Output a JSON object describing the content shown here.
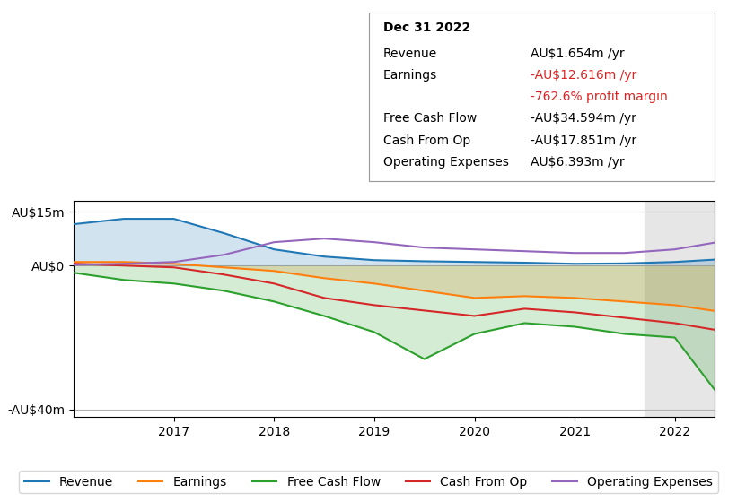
{
  "chart_data": {
    "type": "line",
    "title": "Dec 31 2022",
    "x": [
      2016.0,
      2016.5,
      2017.0,
      2017.5,
      2018.0,
      2018.5,
      2019.0,
      2019.5,
      2020.0,
      2020.5,
      2021.0,
      2021.5,
      2022.0,
      2022.4
    ],
    "series": [
      {
        "name": "Revenue",
        "type": "area",
        "values": [
          11.5,
          13.0,
          13.0,
          9.0,
          4.5,
          2.5,
          1.5,
          1.2,
          1.0,
          0.8,
          0.5,
          0.6,
          1.0,
          1.654
        ]
      },
      {
        "name": "Earnings",
        "type": "area",
        "values": [
          1.0,
          1.0,
          0.5,
          -0.5,
          -1.5,
          -3.5,
          -5.0,
          -7.0,
          -9.0,
          -8.5,
          -9.0,
          -10.0,
          -11.0,
          -12.616
        ]
      },
      {
        "name": "Free Cash Flow",
        "type": "area",
        "values": [
          -2.0,
          -4.0,
          -5.0,
          -7.0,
          -10.0,
          -14.0,
          -18.5,
          -26.0,
          -19.0,
          -16.0,
          -17.0,
          -19.0,
          -20.0,
          -34.594
        ]
      },
      {
        "name": "Cash From Op",
        "type": "line",
        "values": [
          0.5,
          0.0,
          -0.5,
          -2.5,
          -5.0,
          -9.0,
          -11.0,
          -12.5,
          -14.0,
          -12.0,
          -13.0,
          -14.5,
          -16.0,
          -17.851
        ]
      },
      {
        "name": "Operating Expenses",
        "type": "line",
        "values": [
          0.2,
          0.5,
          1.0,
          3.0,
          6.5,
          7.5,
          6.5,
          5.0,
          4.5,
          4.0,
          3.5,
          3.5,
          4.5,
          6.393
        ]
      }
    ],
    "xlim": [
      2016.0,
      2022.4
    ],
    "xticks": [
      2017,
      2018,
      2019,
      2020,
      2021,
      2022
    ],
    "ylim": [
      -42,
      18
    ],
    "yticks": [
      {
        "value": -40,
        "label": "-AU$40m"
      },
      {
        "value": 0,
        "label": "AU$0"
      },
      {
        "value": 15,
        "label": "AU$15m"
      }
    ],
    "highlight": {
      "x_start": 2021.7,
      "x_end": 2022.4
    },
    "grid": "y",
    "legend": "lower center",
    "annotations": [
      {
        "label": "Revenue",
        "text": "AU$1.654m /yr"
      },
      {
        "label": "Earnings",
        "text": "-AU$12.616m /yr",
        "color": "#dd2222"
      },
      {
        "text": "-762.6% profit margin",
        "color": "#dd2222"
      },
      {
        "label": "Free Cash Flow",
        "text": "-AU$34.594m /yr"
      },
      {
        "label": "Cash From Op",
        "text": "-AU$17.851m /yr"
      },
      {
        "label": "Operating Expenses",
        "text": "AU$6.393m /yr"
      }
    ]
  }
}
